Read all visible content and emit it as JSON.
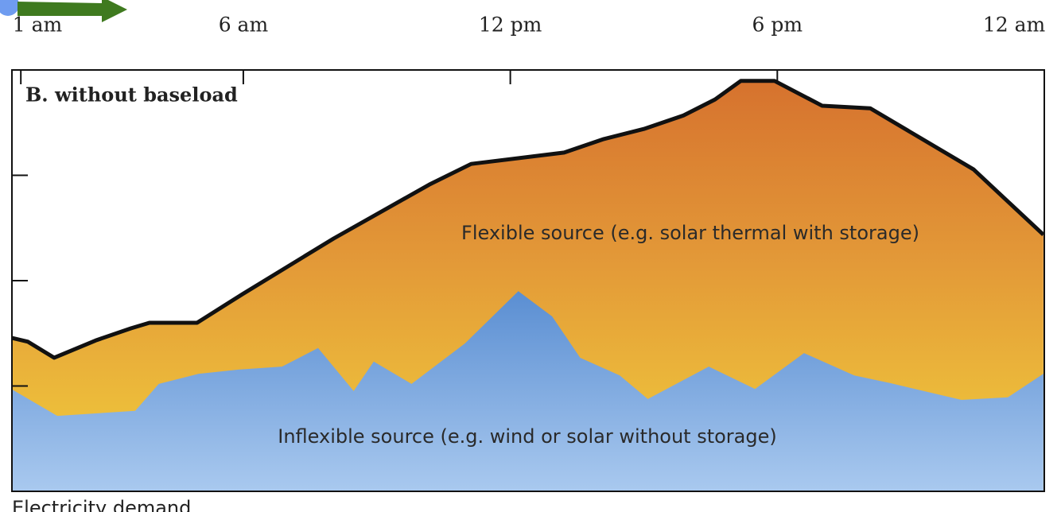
{
  "chart_data": {
    "type": "area",
    "title": "B. without baseload",
    "y_label": "Electricity demand",
    "xlim": [
      0.8,
      24
    ],
    "xticks": [
      {
        "value": 1,
        "label": "1 am"
      },
      {
        "value": 6,
        "label": "6 am"
      },
      {
        "value": 12,
        "label": "12 pm"
      },
      {
        "value": 18,
        "label": "6 pm"
      },
      {
        "value": 24,
        "label": "12 am"
      }
    ],
    "ylim": [
      0,
      100
    ],
    "yticks": [
      25,
      50,
      75
    ],
    "series": [
      {
        "name": "Flexible source (e.g. solar thermal with storage)",
        "color": "#d97a30",
        "x": [
          0.8,
          1.16,
          1.75,
          2.68,
          3.48,
          3.89,
          4.96,
          5.98,
          8.03,
          10.18,
          11.12,
          13.21,
          14.1,
          15.0,
          15.89,
          16.6,
          17.18,
          17.94,
          19.01,
          20.09,
          22.41,
          23.98
        ],
        "values": [
          36.4,
          35.5,
          31.7,
          35.8,
          38.7,
          40.0,
          40.0,
          46.8,
          60.0,
          72.8,
          77.7,
          80.4,
          83.6,
          86.0,
          89.2,
          93.0,
          97.4,
          97.4,
          91.5,
          90.9,
          76.4,
          60.9
        ]
      },
      {
        "name": "Inflexible source (e.g. wind or solar without storage)",
        "color": "#5b8fd0",
        "x": [
          0.8,
          1.82,
          3.57,
          4.1,
          5.0,
          5.89,
          6.87,
          7.68,
          8.48,
          8.93,
          9.78,
          10.98,
          12.18,
          12.94,
          13.57,
          14.46,
          15.09,
          16.46,
          17.5,
          18.6,
          19.73,
          20.53,
          22.14,
          23.18,
          23.98
        ],
        "values": [
          24.2,
          17.9,
          19.1,
          25.5,
          27.9,
          28.9,
          29.6,
          34.0,
          23.8,
          30.8,
          25.5,
          35.1,
          47.5,
          41.5,
          31.7,
          27.5,
          21.9,
          29.6,
          24.3,
          32.8,
          27.5,
          25.7,
          21.7,
          22.3,
          27.9
        ]
      }
    ]
  }
}
